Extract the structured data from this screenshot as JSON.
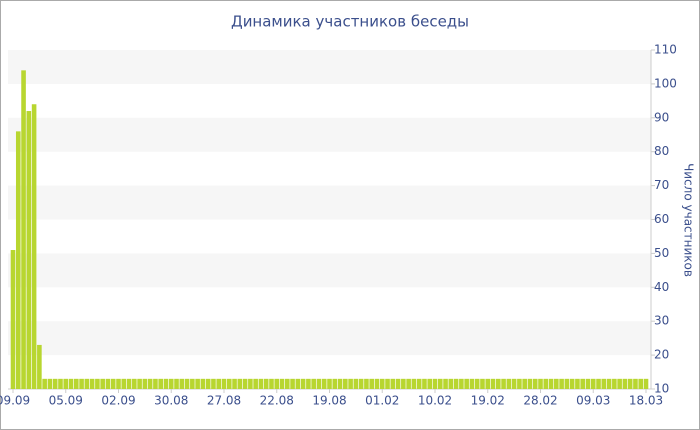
{
  "chart_data": {
    "type": "bar",
    "title": "Динамика участников беседы",
    "y_label": "Число участников",
    "categories": [
      "09.09",
      null,
      null,
      null,
      null,
      null,
      null,
      null,
      null,
      null,
      "05.09",
      null,
      null,
      null,
      null,
      null,
      null,
      null,
      null,
      null,
      "02.09",
      null,
      null,
      null,
      null,
      null,
      null,
      null,
      null,
      null,
      "30.08",
      null,
      null,
      null,
      null,
      null,
      null,
      null,
      null,
      null,
      "27.08",
      null,
      null,
      null,
      null,
      null,
      null,
      null,
      null,
      null,
      "22.08",
      null,
      null,
      null,
      null,
      null,
      null,
      null,
      null,
      null,
      "19.08",
      null,
      null,
      null,
      null,
      null,
      null,
      null,
      null,
      null,
      "01.02",
      null,
      null,
      null,
      null,
      null,
      null,
      null,
      null,
      null,
      "10.02",
      null,
      null,
      null,
      null,
      null,
      null,
      null,
      null,
      null,
      "19.02",
      null,
      null,
      null,
      null,
      null,
      null,
      null,
      null,
      null,
      "28.02",
      null,
      null,
      null,
      null,
      null,
      null,
      null,
      null,
      null,
      "09.03",
      null,
      null,
      null,
      null,
      null,
      null,
      null,
      null,
      null,
      "18.03"
    ],
    "values": [
      51,
      86,
      104,
      92,
      94,
      23,
      13,
      13,
      13,
      13,
      13,
      13,
      13,
      13,
      13,
      13,
      13,
      13,
      13,
      13,
      13,
      13,
      13,
      13,
      13,
      13,
      13,
      13,
      13,
      13,
      13,
      13,
      13,
      13,
      13,
      13,
      13,
      13,
      13,
      13,
      13,
      13,
      13,
      13,
      13,
      13,
      13,
      13,
      13,
      13,
      13,
      13,
      13,
      13,
      13,
      13,
      13,
      13,
      13,
      13,
      13,
      13,
      13,
      13,
      13,
      13,
      13,
      13,
      13,
      13,
      13,
      13,
      13,
      13,
      13,
      13,
      13,
      13,
      13,
      13,
      13,
      13,
      13,
      13,
      13,
      13,
      13,
      13,
      13,
      13,
      13,
      13,
      13,
      13,
      13,
      13,
      13,
      13,
      13,
      13,
      13,
      13,
      13,
      13,
      13,
      13,
      13,
      13,
      13,
      13,
      13,
      13,
      13,
      13,
      13,
      13,
      13,
      13,
      13,
      13,
      13
    ],
    "color": "#b8d630",
    "ylim": [
      10,
      110
    ],
    "yticks": [
      10,
      20,
      30,
      40,
      50,
      60,
      70,
      80,
      90,
      100,
      110
    ],
    "grid": true
  }
}
